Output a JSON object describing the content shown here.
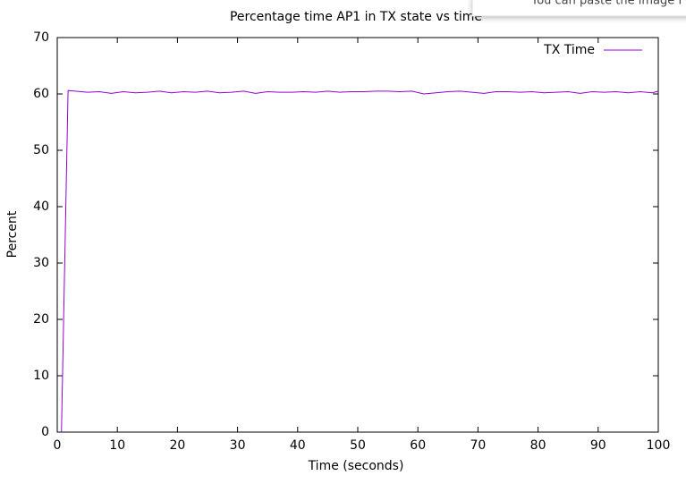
{
  "chart_data": {
    "type": "line",
    "title": "Percentage time AP1 in TX state vs time",
    "x_label": "Time (seconds)",
    "y_label": "Percent",
    "x": [
      0.7,
      1.8,
      3,
      5,
      7,
      9,
      11,
      13,
      15,
      17,
      19,
      21,
      23,
      25,
      27,
      29,
      31,
      33,
      35,
      37,
      39,
      41,
      43,
      45,
      47,
      49,
      51,
      53,
      55,
      57,
      59,
      61,
      63,
      65,
      67,
      69,
      71,
      73,
      75,
      77,
      79,
      81,
      83,
      85,
      87,
      89,
      91,
      93,
      95,
      97,
      99,
      100
    ],
    "series": [
      {
        "name": "TX Time",
        "color": "#9400d3",
        "values": [
          0,
          60.6,
          60.5,
          60.3,
          60.4,
          60.1,
          60.4,
          60.2,
          60.3,
          60.5,
          60.2,
          60.4,
          60.3,
          60.5,
          60.2,
          60.3,
          60.5,
          60.1,
          60.4,
          60.3,
          60.3,
          60.4,
          60.3,
          60.5,
          60.3,
          60.4,
          60.4,
          60.5,
          60.5,
          60.4,
          60.5,
          60.0,
          60.2,
          60.4,
          60.5,
          60.3,
          60.1,
          60.4,
          60.4,
          60.3,
          60.4,
          60.2,
          60.3,
          60.4,
          60.1,
          60.4,
          60.3,
          60.4,
          60.2,
          60.4,
          60.2,
          60.5
        ]
      }
    ],
    "xlim": [
      0,
      100
    ],
    "xticks": [
      0,
      10,
      20,
      30,
      40,
      50,
      60,
      70,
      80,
      90,
      100
    ],
    "ylim": [
      0,
      70
    ],
    "yticks": [
      0,
      10,
      20,
      30,
      40,
      50,
      60,
      70
    ],
    "legend": "top-right",
    "grid": false
  },
  "overlay": {
    "text": "You can paste the image f"
  }
}
